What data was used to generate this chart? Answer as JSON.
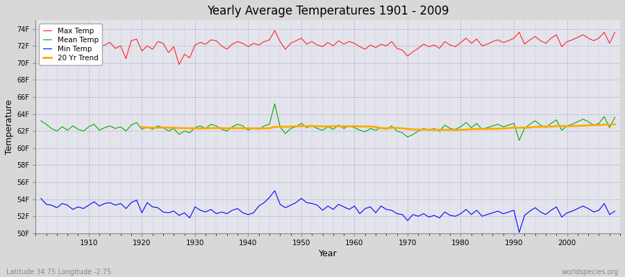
{
  "title": "Yearly Average Temperatures 1901 - 2009",
  "xlabel": "Year",
  "ylabel": "Temperature",
  "lat_lon_label": "Latitude 34.75 Longitude -2.75",
  "source_label": "worldspecies.org",
  "years": [
    1901,
    1902,
    1903,
    1904,
    1905,
    1906,
    1907,
    1908,
    1909,
    1910,
    1911,
    1912,
    1913,
    1914,
    1915,
    1916,
    1917,
    1918,
    1919,
    1920,
    1921,
    1922,
    1923,
    1924,
    1925,
    1926,
    1927,
    1928,
    1929,
    1930,
    1931,
    1932,
    1933,
    1934,
    1935,
    1936,
    1937,
    1938,
    1939,
    1940,
    1941,
    1942,
    1943,
    1944,
    1945,
    1946,
    1947,
    1948,
    1949,
    1950,
    1951,
    1952,
    1953,
    1954,
    1955,
    1956,
    1957,
    1958,
    1959,
    1960,
    1961,
    1962,
    1963,
    1964,
    1965,
    1966,
    1967,
    1968,
    1969,
    1970,
    1971,
    1972,
    1973,
    1974,
    1975,
    1976,
    1977,
    1978,
    1979,
    1980,
    1981,
    1982,
    1983,
    1984,
    1985,
    1986,
    1987,
    1988,
    1989,
    1990,
    1991,
    1992,
    1993,
    1994,
    1995,
    1996,
    1997,
    1998,
    1999,
    2000,
    2001,
    2002,
    2003,
    2004,
    2005,
    2006,
    2007,
    2008,
    2009
  ],
  "max_temp": [
    72.8,
    71.2,
    71.5,
    71.0,
    71.8,
    71.4,
    71.6,
    71.3,
    71.1,
    71.5,
    72.3,
    71.8,
    72.1,
    72.4,
    71.7,
    72.0,
    70.5,
    72.6,
    72.8,
    71.4,
    72.0,
    71.6,
    72.5,
    72.3,
    71.2,
    71.9,
    69.8,
    71.0,
    70.6,
    72.1,
    72.4,
    72.2,
    72.7,
    72.6,
    72.0,
    71.6,
    72.2,
    72.5,
    72.3,
    71.9,
    72.3,
    72.1,
    72.5,
    72.7,
    73.8,
    72.5,
    71.6,
    72.3,
    72.6,
    72.9,
    72.2,
    72.5,
    72.1,
    71.9,
    72.4,
    72.0,
    72.6,
    72.2,
    72.5,
    72.3,
    71.9,
    71.6,
    72.1,
    71.8,
    72.2,
    72.0,
    72.5,
    71.7,
    71.5,
    70.8,
    71.3,
    71.7,
    72.2,
    71.9,
    72.1,
    71.7,
    72.5,
    72.1,
    71.9,
    72.4,
    72.9,
    72.3,
    72.8,
    72.0,
    72.2,
    72.5,
    72.7,
    72.4,
    72.6,
    72.9,
    73.6,
    72.2,
    72.7,
    73.1,
    72.6,
    72.3,
    72.9,
    73.3,
    71.9,
    72.5,
    72.7,
    73.0,
    73.3,
    72.9,
    72.6,
    72.9,
    73.6,
    72.3,
    73.6
  ],
  "mean_temp": [
    63.2,
    62.8,
    62.3,
    62.0,
    62.5,
    62.1,
    62.6,
    62.2,
    62.0,
    62.5,
    62.8,
    62.1,
    62.4,
    62.6,
    62.3,
    62.5,
    62.0,
    62.7,
    63.0,
    62.2,
    62.5,
    62.2,
    62.6,
    62.4,
    62.0,
    62.3,
    61.6,
    62.0,
    61.8,
    62.4,
    62.6,
    62.3,
    62.8,
    62.6,
    62.2,
    62.0,
    62.5,
    62.8,
    62.6,
    62.1,
    62.4,
    62.2,
    62.6,
    62.8,
    65.2,
    62.5,
    61.7,
    62.3,
    62.5,
    62.9,
    62.4,
    62.6,
    62.3,
    62.1,
    62.5,
    62.2,
    62.7,
    62.3,
    62.6,
    62.4,
    62.1,
    61.9,
    62.3,
    62.1,
    62.4,
    62.2,
    62.6,
    62.0,
    61.8,
    61.3,
    61.6,
    62.0,
    62.3,
    62.1,
    62.3,
    62.0,
    62.7,
    62.3,
    62.2,
    62.5,
    63.0,
    62.4,
    62.9,
    62.2,
    62.4,
    62.6,
    62.8,
    62.5,
    62.7,
    62.9,
    60.9,
    62.3,
    62.8,
    63.2,
    62.7,
    62.4,
    62.9,
    63.3,
    62.1,
    62.6,
    62.8,
    63.1,
    63.4,
    63.1,
    62.7,
    62.9,
    63.7,
    62.4,
    63.6
  ],
  "min_temp": [
    54.1,
    53.4,
    53.3,
    53.0,
    53.5,
    53.3,
    52.8,
    53.1,
    52.9,
    53.3,
    53.7,
    53.2,
    53.5,
    53.6,
    53.3,
    53.5,
    52.9,
    53.6,
    53.9,
    52.4,
    53.6,
    53.1,
    53.0,
    52.5,
    52.4,
    52.6,
    52.1,
    52.4,
    51.8,
    53.1,
    52.7,
    52.5,
    52.8,
    52.3,
    52.5,
    52.3,
    52.7,
    52.9,
    52.4,
    52.2,
    52.4,
    53.2,
    53.6,
    54.2,
    55.0,
    53.4,
    53.0,
    53.3,
    53.6,
    54.1,
    53.6,
    53.5,
    53.3,
    52.7,
    53.2,
    52.8,
    53.4,
    53.1,
    52.8,
    53.2,
    52.3,
    52.9,
    53.1,
    52.4,
    53.2,
    52.8,
    52.7,
    52.3,
    52.2,
    51.5,
    52.2,
    52.0,
    52.3,
    51.9,
    52.1,
    51.8,
    52.5,
    52.1,
    52.0,
    52.3,
    52.8,
    52.2,
    52.7,
    52.0,
    52.2,
    52.4,
    52.6,
    52.3,
    52.5,
    52.7,
    50.1,
    52.1,
    52.6,
    53.0,
    52.5,
    52.2,
    52.7,
    53.1,
    51.9,
    52.4,
    52.6,
    52.9,
    53.2,
    52.9,
    52.5,
    52.7,
    53.5,
    52.2,
    52.6
  ],
  "bg_color": "#d8d8d8",
  "plot_bg_color": "#e4e4ec",
  "max_color": "#ff2222",
  "mean_color": "#00aa00",
  "min_color": "#0000ff",
  "trend_color": "#ffaa00",
  "grid_color": "#aaaacc",
  "ylim": [
    50,
    75
  ],
  "yticks": [
    50,
    52,
    54,
    56,
    58,
    60,
    62,
    64,
    66,
    68,
    70,
    72,
    74
  ],
  "ytick_labels": [
    "50F",
    "52F",
    "54F",
    "56F",
    "58F",
    "60F",
    "62F",
    "64F",
    "66F",
    "68F",
    "70F",
    "72F",
    "74F"
  ],
  "xticks": [
    1910,
    1920,
    1930,
    1940,
    1950,
    1960,
    1970,
    1980,
    1990,
    2000
  ],
  "xlim": [
    1900,
    2010
  ]
}
